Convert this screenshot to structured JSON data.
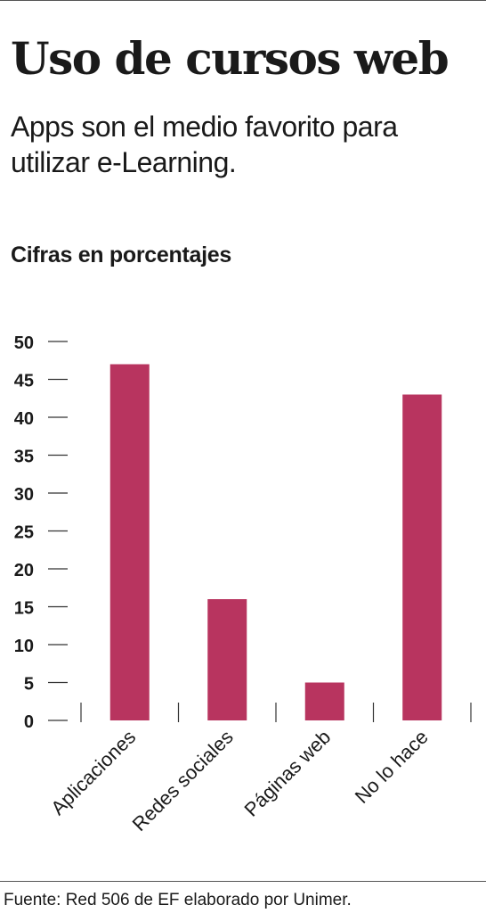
{
  "header": {
    "title": "Uso de cursos web",
    "subtitle": "Apps son el medio favorito para utilizar e-Learning."
  },
  "chart_data": {
    "type": "bar",
    "title": "Uso de cursos web",
    "subtitle": "Apps son el medio favorito para utilizar e-Learning.",
    "ylabel": "Cifras en porcentajes",
    "xlabel": "",
    "categories": [
      "Aplicaciones",
      "Redes sociales",
      "Páginas web",
      "No lo hace"
    ],
    "values": [
      47,
      16,
      5,
      43
    ],
    "ylim": [
      0,
      50
    ],
    "yticks": [
      "0",
      "5",
      "10",
      "15",
      "20",
      "25",
      "30",
      "35",
      "40",
      "45",
      "50"
    ],
    "grid": false,
    "bar_color": "#b8345f"
  },
  "footer": {
    "source": "Fuente: Red 506 de EF elaborado por Unimer."
  }
}
